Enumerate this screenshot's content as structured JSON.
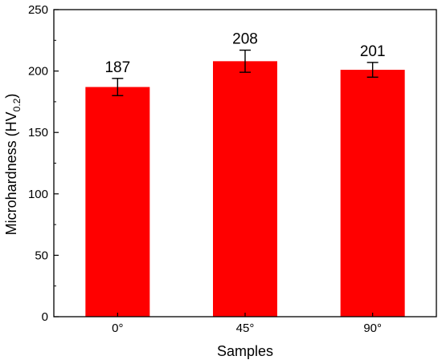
{
  "chart_data": {
    "type": "bar",
    "categories": [
      "0°",
      "45°",
      "90°"
    ],
    "values": [
      187,
      208,
      201
    ],
    "errors": [
      7,
      9,
      6
    ],
    "data_labels": [
      "187",
      "208",
      "201"
    ],
    "xlabel": "Samples",
    "ylabel": {
      "main": "Microhardness (HV",
      "sub": "0.2",
      "close": ")"
    },
    "ylim": [
      0,
      250
    ],
    "yticks": [
      0,
      50,
      100,
      150,
      200,
      250
    ],
    "bar_color": "#ff0000",
    "grid": false
  }
}
